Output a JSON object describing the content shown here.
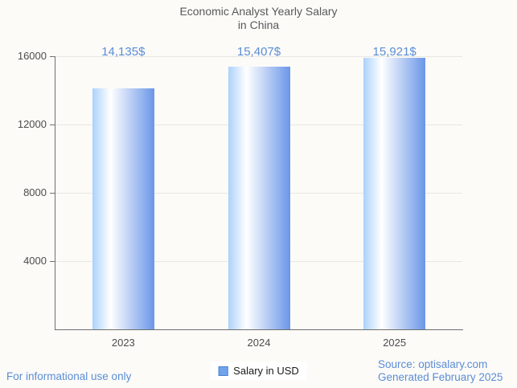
{
  "title": {
    "line1": "Economic Analyst Yearly Salary",
    "line2": "in China"
  },
  "chart_data": {
    "type": "bar",
    "title": "Economic Analyst Yearly Salary in China",
    "categories": [
      "2023",
      "2024",
      "2025"
    ],
    "series": [
      {
        "name": "Salary in USD",
        "values": [
          14135,
          15407,
          15921
        ],
        "value_labels": [
          "14,135$",
          "15,407$",
          "15,921$"
        ]
      }
    ],
    "xlabel": "",
    "ylabel": "",
    "ylim": [
      0,
      16000
    ],
    "yticks": [
      4000,
      8000,
      12000,
      16000
    ],
    "grid": true,
    "legend_position": "bottom",
    "bar_gradient": [
      "#abd2fb",
      "#ffffff",
      "#6b96e8"
    ]
  },
  "legend": {
    "label": "Salary in USD"
  },
  "footer": {
    "disclaimer": "For informational use only",
    "source": "Source: optisalary.com",
    "generated": "Generated February 2025"
  },
  "colors": {
    "background": "#fcfbf8",
    "accent_text": "#5b8dd6",
    "title_text": "#58595b",
    "axis_text": "#4c4c4c",
    "gridline": "#e8e7e3",
    "axis_line": "#6f6f6f",
    "legend_swatch": "#6fa4ec",
    "legend_swatch_border": "#4d7fd0"
  }
}
